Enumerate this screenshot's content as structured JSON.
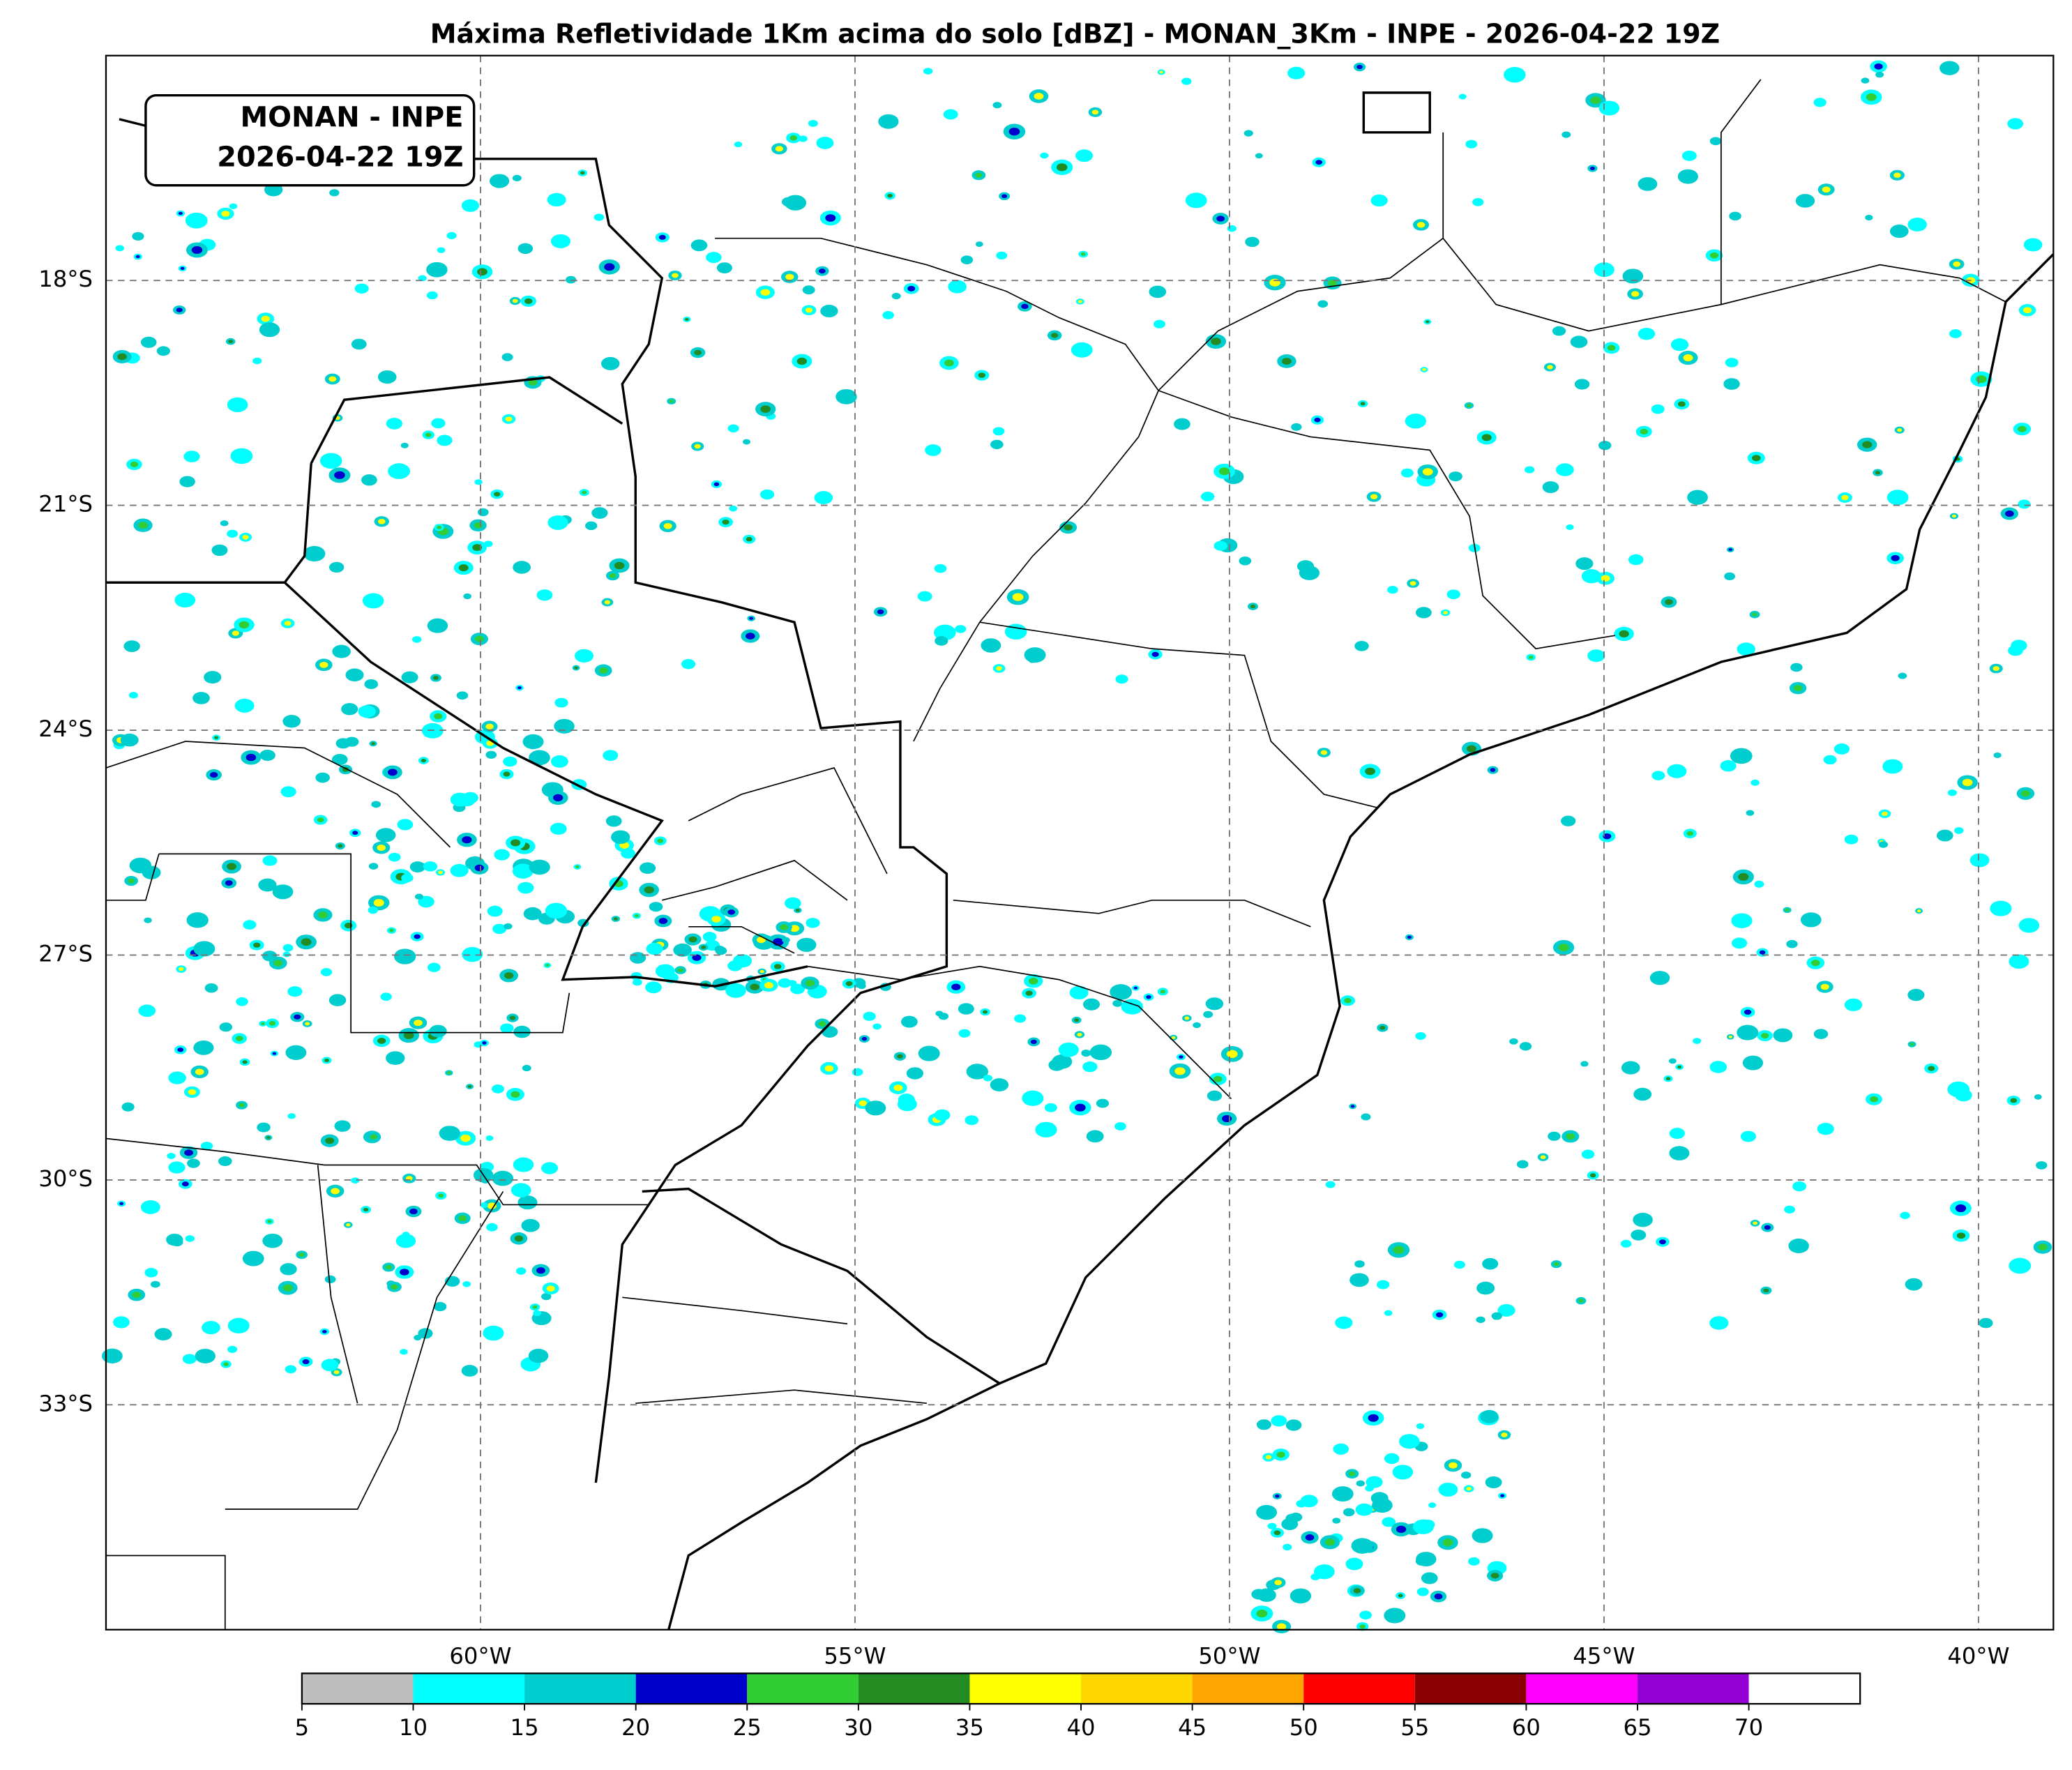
{
  "map": {
    "title": "Máxima Refletividade 1Km acima do solo [dBZ] - MONAN_3Km - INPE - 2026-04-22 19Z",
    "annotation": [
      "MONAN - INPE",
      "2026-04-22 19Z"
    ],
    "xlim": [
      -65,
      -39
    ],
    "ylim": [
      -36,
      -15
    ],
    "lat_ticks": [
      {
        "value": -18,
        "label": "18°S"
      },
      {
        "value": -21,
        "label": "21°S"
      },
      {
        "value": -24,
        "label": "24°S"
      },
      {
        "value": -27,
        "label": "27°S"
      },
      {
        "value": -30,
        "label": "30°S"
      },
      {
        "value": -33,
        "label": "33°S"
      }
    ],
    "lon_ticks": [
      {
        "value": -60,
        "label": "60°W"
      },
      {
        "value": -55,
        "label": "55°W"
      },
      {
        "value": -50,
        "label": "50°W"
      },
      {
        "value": -45,
        "label": "45°W"
      },
      {
        "value": -40,
        "label": "40°W"
      }
    ],
    "colorbar": {
      "levels": [
        5,
        10,
        15,
        20,
        25,
        30,
        35,
        40,
        45,
        50,
        55,
        60,
        65,
        70
      ],
      "colors": [
        "#bebebe",
        "#00ffff",
        "#00cdcd",
        "#0000cd",
        "#32cd32",
        "#228b22",
        "#ffff00",
        "#ffd700",
        "#ffa500",
        "#ff0000",
        "#8b0000",
        "#ff00ff",
        "#9400d3"
      ],
      "over_color": "#ffffff"
    }
  }
}
